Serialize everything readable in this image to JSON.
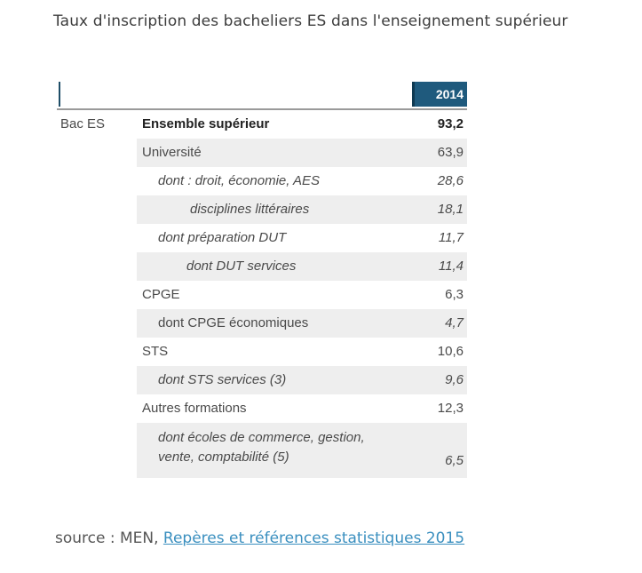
{
  "title": "Taux d'inscription des bacheliers ES dans l'enseignement supérieur",
  "table": {
    "year_header": "2014",
    "group_label": "Bac ES",
    "rows": [
      {
        "label": "Ensemble supérieur",
        "value": "93,2"
      },
      {
        "label": "Université",
        "value": "63,9"
      },
      {
        "label": "dont : droit, économie, AES",
        "value": "28,6"
      },
      {
        "label": "disciplines littéraires",
        "value": "18,1"
      },
      {
        "label": "dont préparation DUT",
        "value": "11,7"
      },
      {
        "label": "dont DUT services",
        "value": "11,4"
      },
      {
        "label": "CPGE",
        "value": "6,3"
      },
      {
        "label": "dont CPGE économiques",
        "value": "4,7"
      },
      {
        "label": "STS",
        "value": "10,6"
      },
      {
        "label": "dont STS services (3)",
        "value": "9,6"
      },
      {
        "label": "Autres formations",
        "value": "12,3"
      },
      {
        "label": "dont écoles de commerce, gestion, vente, comptabilité (5)",
        "value": "6,5"
      }
    ]
  },
  "source": {
    "prefix": "source : MEN, ",
    "link_text": "Repères et références statistiques 2015"
  },
  "colors": {
    "header_fill": "#1f5a7d",
    "shade": "#eeeeee",
    "link": "#3a8fbf"
  }
}
